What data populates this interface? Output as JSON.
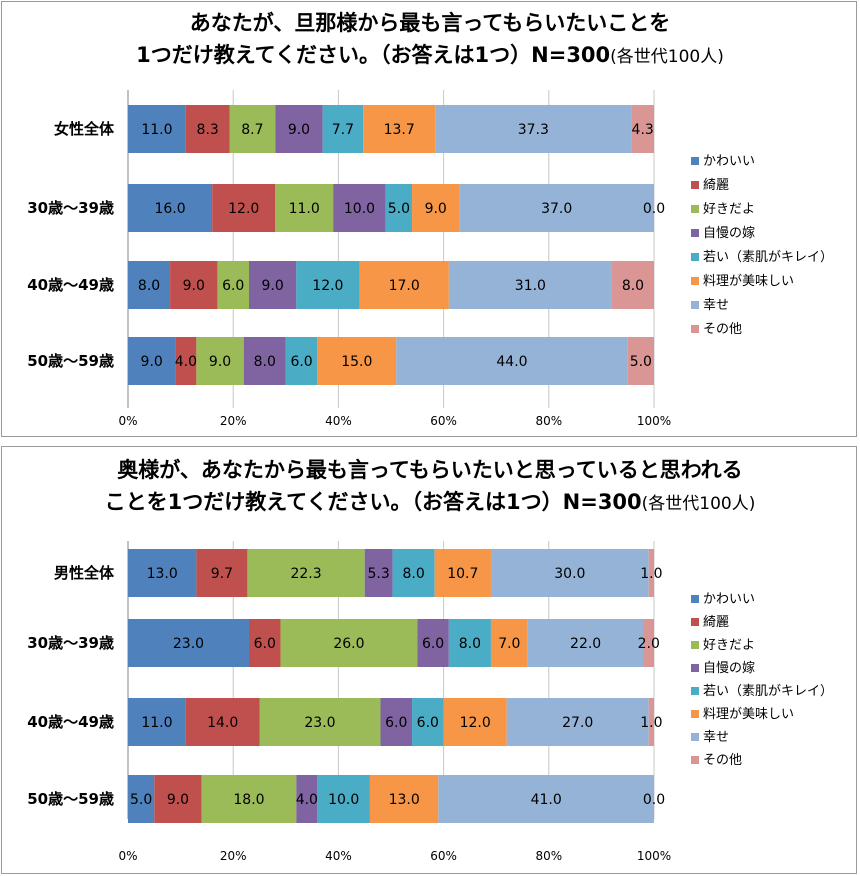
{
  "chart_data": [
    {
      "type": "bar",
      "orientation": "horizontal",
      "stacked": "percent",
      "title": "あなたが、旦那様から最も言ってもらいたいことを",
      "title_line2": "1つだけ教えてください。（お答えは1つ）N=300",
      "title_suffix": "(各世代100人)",
      "categories": [
        "女性全体",
        "30歳〜39歳",
        "40歳〜49歳",
        "50歳〜59歳"
      ],
      "series": [
        {
          "name": "かわいい",
          "color": "#4f81bd",
          "values": [
            11.0,
            16.0,
            8.0,
            9.0
          ]
        },
        {
          "name": "綺麗",
          "color": "#c0504d",
          "values": [
            8.3,
            12.0,
            9.0,
            4.0
          ]
        },
        {
          "name": "好きだよ",
          "color": "#9bbb59",
          "values": [
            8.7,
            11.0,
            6.0,
            9.0
          ]
        },
        {
          "name": "自慢の嫁",
          "color": "#8064a2",
          "values": [
            9.0,
            10.0,
            9.0,
            8.0
          ]
        },
        {
          "name": "若い（素肌がキレイ）",
          "color": "#4bacc6",
          "values": [
            7.7,
            5.0,
            12.0,
            6.0
          ]
        },
        {
          "name": "料理が美味しい",
          "color": "#f79646",
          "values": [
            13.7,
            9.0,
            17.0,
            15.0
          ]
        },
        {
          "name": "幸せ",
          "color": "#95b3d7",
          "values": [
            37.3,
            37.0,
            31.0,
            44.0
          ]
        },
        {
          "name": "その他",
          "color": "#d99694",
          "values": [
            4.3,
            0.0,
            8.0,
            5.0
          ]
        }
      ],
      "x_ticks": [
        "0%",
        "20%",
        "40%",
        "60%",
        "80%",
        "100%"
      ],
      "xlim": [
        0,
        100
      ],
      "legend_position": "right"
    },
    {
      "type": "bar",
      "orientation": "horizontal",
      "stacked": "percent",
      "title": "奥様が、あなたから最も言ってもらいたいと思っていると思われる",
      "title_line2": "ことを1つだけ教えてください。（お答えは1つ）N=300",
      "title_suffix": "(各世代100人)",
      "categories": [
        "男性全体",
        "30歳〜39歳",
        "40歳〜49歳",
        "50歳〜59歳"
      ],
      "series": [
        {
          "name": "かわいい",
          "color": "#4f81bd",
          "values": [
            13.0,
            23.0,
            11.0,
            5.0
          ]
        },
        {
          "name": "綺麗",
          "color": "#c0504d",
          "values": [
            9.7,
            6.0,
            14.0,
            9.0
          ]
        },
        {
          "name": "好きだよ",
          "color": "#9bbb59",
          "values": [
            22.3,
            26.0,
            23.0,
            18.0
          ]
        },
        {
          "name": "自慢の嫁",
          "color": "#8064a2",
          "values": [
            5.3,
            6.0,
            6.0,
            4.0
          ]
        },
        {
          "name": "若い（素肌がキレイ）",
          "color": "#4bacc6",
          "values": [
            8.0,
            8.0,
            6.0,
            10.0
          ]
        },
        {
          "name": "料理が美味しい",
          "color": "#f79646",
          "values": [
            10.7,
            7.0,
            12.0,
            13.0
          ]
        },
        {
          "name": "幸せ",
          "color": "#95b3d7",
          "values": [
            30.0,
            22.0,
            27.0,
            41.0
          ]
        },
        {
          "name": "その他",
          "color": "#d99694",
          "values": [
            1.0,
            2.0,
            1.0,
            0.0
          ]
        }
      ],
      "x_ticks": [
        "0%",
        "20%",
        "40%",
        "60%",
        "80%",
        "100%"
      ],
      "xlim": [
        0,
        100
      ],
      "legend_position": "right"
    }
  ]
}
